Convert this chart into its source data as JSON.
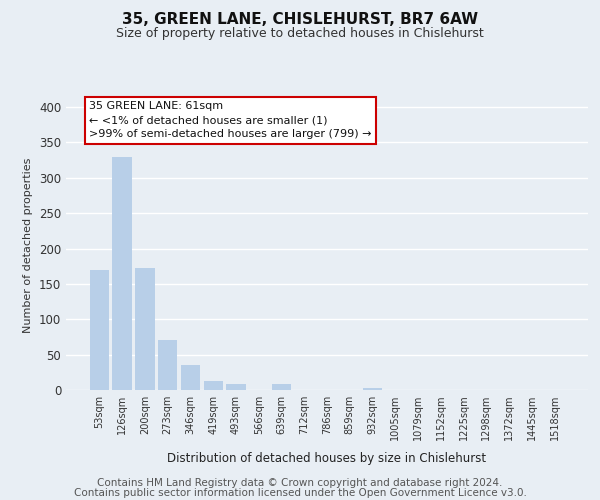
{
  "title": "35, GREEN LANE, CHISLEHURST, BR7 6AW",
  "subtitle": "Size of property relative to detached houses in Chislehurst",
  "xlabel": "Distribution of detached houses by size in Chislehurst",
  "ylabel": "Number of detached properties",
  "bar_labels": [
    "53sqm",
    "126sqm",
    "200sqm",
    "273sqm",
    "346sqm",
    "419sqm",
    "493sqm",
    "566sqm",
    "639sqm",
    "712sqm",
    "786sqm",
    "859sqm",
    "932sqm",
    "1005sqm",
    "1079sqm",
    "1152sqm",
    "1225sqm",
    "1298sqm",
    "1372sqm",
    "1445sqm",
    "1518sqm"
  ],
  "bar_values": [
    170,
    330,
    172,
    70,
    35,
    13,
    9,
    0,
    8,
    0,
    0,
    0,
    3,
    0,
    0,
    0,
    0,
    0,
    0,
    0,
    0
  ],
  "bar_color": "#b8cfe8",
  "highlight_color": "#cc0000",
  "annotation_box_text": "35 GREEN LANE: 61sqm\n← <1% of detached houses are smaller (1)\n>99% of semi-detached houses are larger (799) →",
  "annotation_box_color": "#cc0000",
  "ylim": [
    0,
    410
  ],
  "yticks": [
    0,
    50,
    100,
    150,
    200,
    250,
    300,
    350,
    400
  ],
  "footer_line1": "Contains HM Land Registry data © Crown copyright and database right 2024.",
  "footer_line2": "Contains public sector information licensed under the Open Government Licence v3.0.",
  "background_color": "#e8eef4",
  "grid_color": "#ffffff",
  "title_fontsize": 11,
  "subtitle_fontsize": 9,
  "footer_fontsize": 7.5
}
